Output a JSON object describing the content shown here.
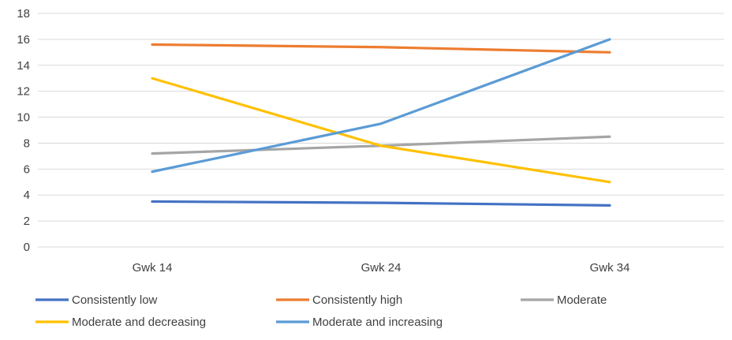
{
  "chart_data": {
    "type": "line",
    "title": "",
    "xlabel": "",
    "ylabel": "",
    "categories": [
      "Gwk 14",
      "Gwk 24",
      "Gwk 34"
    ],
    "ylim": [
      0,
      18
    ],
    "yticks": [
      0,
      2,
      4,
      6,
      8,
      10,
      12,
      14,
      16,
      18
    ],
    "grid": true,
    "legend_position": "bottom",
    "series": [
      {
        "name": "Consistently low",
        "color": "#4472C4",
        "values": [
          3.5,
          3.4,
          3.2
        ]
      },
      {
        "name": "Consistently high",
        "color": "#ED7D31",
        "values": [
          15.6,
          15.4,
          15.0
        ]
      },
      {
        "name": "Moderate",
        "color": "#A5A5A5",
        "values": [
          7.2,
          7.8,
          8.5
        ]
      },
      {
        "name": "Moderate and decreasing",
        "color": "#FFC000",
        "values": [
          13.0,
          7.8,
          5.0
        ]
      },
      {
        "name": "Moderate and increasing",
        "color": "#5B9BD5",
        "values": [
          5.8,
          9.5,
          16.0
        ]
      }
    ]
  }
}
